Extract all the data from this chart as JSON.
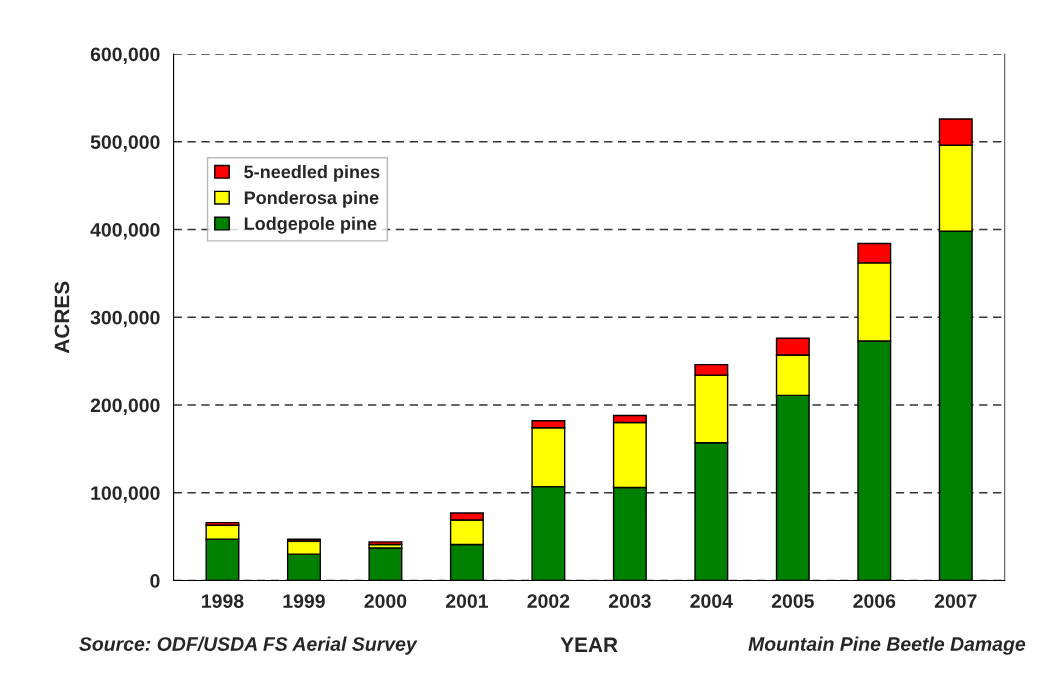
{
  "chart_data": {
    "type": "bar",
    "stacked": true,
    "xlabel": "YEAR",
    "ylabel": "ACRES",
    "categories": [
      "1998",
      "1999",
      "2000",
      "2001",
      "2002",
      "2003",
      "2004",
      "2005",
      "2006",
      "2007"
    ],
    "series": [
      {
        "name": "Lodgepole pine",
        "color": "#008000",
        "values": [
          47000,
          30000,
          37000,
          41000,
          107000,
          106000,
          157000,
          211000,
          273000,
          398000
        ]
      },
      {
        "name": "Ponderosa pine",
        "color": "#ffff00",
        "values": [
          16000,
          15000,
          4000,
          28000,
          67000,
          74000,
          77000,
          46000,
          89000,
          98000
        ]
      },
      {
        "name": "5-needled pines",
        "color": "#ff0000",
        "values": [
          3000,
          2000,
          3000,
          8000,
          8000,
          8000,
          12000,
          19000,
          22000,
          30000
        ]
      }
    ],
    "ylim": [
      0,
      600000
    ],
    "yticks": [
      {
        "value": 0,
        "label": "0"
      },
      {
        "value": 100000,
        "label": "100,000"
      },
      {
        "value": 200000,
        "label": "200,000"
      },
      {
        "value": 300000,
        "label": "300,000"
      },
      {
        "value": 400000,
        "label": "400,000"
      },
      {
        "value": 500000,
        "label": "500,000"
      },
      {
        "value": 600000,
        "label": "600,000"
      }
    ],
    "grid": "y",
    "legend": "top left",
    "annotations": [
      "Source: ODF/USDA FS Aerial Survey",
      "Mountain Pine Beetle Damage"
    ]
  }
}
